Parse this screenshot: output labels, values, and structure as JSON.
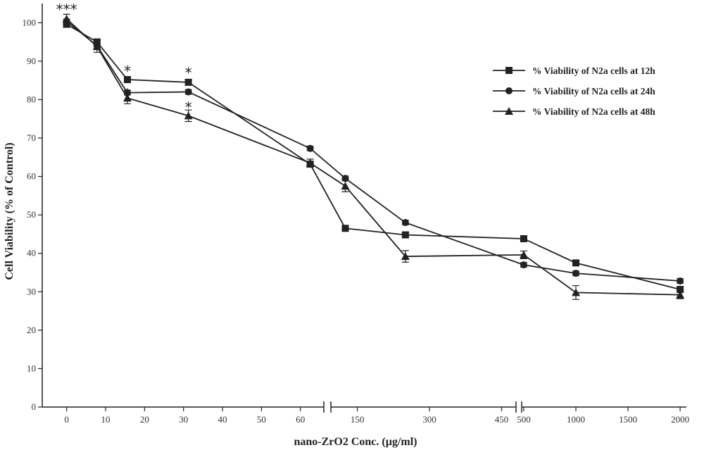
{
  "chart_data": {
    "type": "line",
    "title": "",
    "xlabel": "nano-ZrO2 Conc. (µg/ml)",
    "ylabel": "Cell Viability (% of Control)",
    "ylim": [
      0,
      105
    ],
    "yticks": [
      0,
      10,
      20,
      30,
      40,
      50,
      60,
      70,
      80,
      90,
      100
    ],
    "x_axis_segments": [
      {
        "range": [
          -3,
          66
        ],
        "ticks": [
          0,
          10,
          20,
          30,
          40,
          50,
          60
        ]
      },
      {
        "range": [
          95,
          480
        ],
        "ticks": [
          150,
          300,
          450
        ]
      },
      {
        "range": [
          480,
          2060
        ],
        "ticks": [
          500,
          1000,
          1500,
          2000
        ]
      }
    ],
    "x": [
      0,
      7.8,
      15.6,
      31.25,
      62.5,
      125,
      250,
      500,
      1000,
      2000
    ],
    "series": [
      {
        "name": "% Viability of N2a  cells at 12h",
        "marker": "square",
        "values": [
          99.6,
          95.0,
          85.2,
          84.5,
          63.2,
          46.5,
          44.8,
          43.8,
          37.5,
          30.6
        ],
        "errors": [
          0.5,
          0.5,
          0.6,
          0.6,
          0.6,
          0.6,
          0.6,
          0.6,
          0.6,
          0.6
        ]
      },
      {
        "name": "% Viability of N2a  cells at 24h",
        "marker": "circle",
        "values": [
          100.4,
          94.0,
          81.8,
          82.0,
          67.3,
          59.5,
          48.0,
          37.0,
          34.8,
          32.8
        ],
        "errors": [
          0.5,
          0.6,
          0.6,
          0.6,
          0.6,
          0.6,
          0.6,
          0.6,
          0.6,
          0.6
        ]
      },
      {
        "name": "% Viability of N2a  cells at 48h",
        "marker": "triangle",
        "values": [
          101.0,
          93.8,
          80.4,
          75.8,
          63.5,
          57.5,
          39.2,
          39.6,
          29.8,
          29.2
        ],
        "errors": [
          1.2,
          1.5,
          1.5,
          1.5,
          1.0,
          1.5,
          1.5,
          1.0,
          1.8,
          1.0
        ]
      }
    ],
    "annotations": [
      {
        "text": "***",
        "x": 0,
        "y": 104
      },
      {
        "text": "*",
        "x": 15.6,
        "y": 88
      },
      {
        "text": "*",
        "x": 31.25,
        "y": 87.5
      },
      {
        "text": "*",
        "x": 15.6,
        "y": 82
      },
      {
        "text": "*",
        "x": 31.25,
        "y": 78.5
      }
    ],
    "legend": "right"
  }
}
